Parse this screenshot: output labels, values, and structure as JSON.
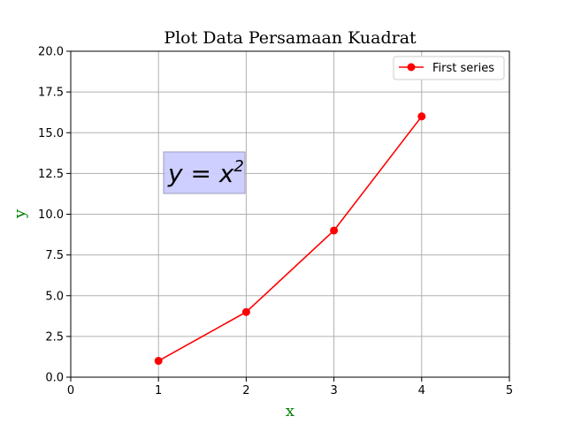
{
  "chart_data": {
    "type": "line",
    "title": "Plot Data Persamaan Kuadrat",
    "xlabel": "x",
    "ylabel": "y",
    "label_color": "#008000",
    "xlim": [
      0,
      5
    ],
    "ylim": [
      0,
      20
    ],
    "xticks": [
      0,
      1,
      2,
      3,
      4,
      5
    ],
    "yticks": [
      0.0,
      2.5,
      5.0,
      7.5,
      10.0,
      12.5,
      15.0,
      17.5,
      20.0
    ],
    "xtick_labels": [
      "0",
      "1",
      "2",
      "3",
      "4",
      "5"
    ],
    "ytick_labels": [
      "0.0",
      "2.5",
      "5.0",
      "7.5",
      "10.0",
      "12.5",
      "15.0",
      "17.5",
      "20.0"
    ],
    "grid": true,
    "legend": {
      "placement": "top-right"
    },
    "series": [
      {
        "name": "First series",
        "color": "#ff0000",
        "marker": "circle",
        "x": [
          1,
          2,
          3,
          4
        ],
        "y": [
          1,
          4,
          9,
          16
        ]
      }
    ],
    "annotation": {
      "text_base": "y = x",
      "text_exponent": "2",
      "at": [
        1.5,
        12.5
      ],
      "background": "#ccccff"
    }
  }
}
